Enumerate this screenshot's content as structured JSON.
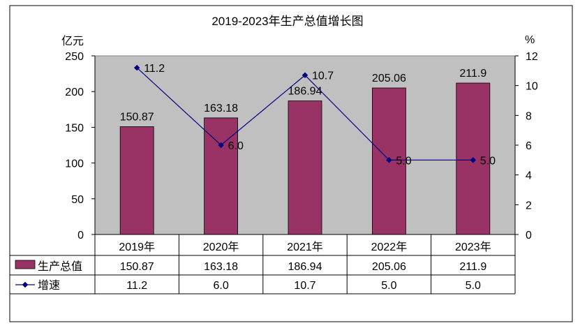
{
  "chart_data": {
    "type": "bar+line",
    "title": "2019-2023年生产总值增长图",
    "categories": [
      "2019年",
      "2020年",
      "2021年",
      "2022年",
      "2023年"
    ],
    "y_left": {
      "unit": "亿元",
      "ylim": [
        0,
        250
      ],
      "ticks": [
        0,
        50,
        100,
        150,
        200,
        250
      ]
    },
    "y_right": {
      "unit": "%",
      "ylim": [
        0,
        12
      ],
      "ticks": [
        0,
        2,
        4,
        6,
        8,
        10,
        12
      ]
    },
    "series": [
      {
        "name": "生产总值",
        "kind": "bar",
        "axis": "left",
        "color": "#993366",
        "values": [
          150.87,
          163.18,
          186.94,
          205.06,
          211.9
        ],
        "labels": [
          "150.87",
          "163.18",
          "186.94",
          "205.06",
          "211.9"
        ]
      },
      {
        "name": "增速",
        "kind": "line",
        "axis": "right",
        "color": "#000080",
        "values": [
          11.2,
          6.0,
          10.7,
          5.0,
          5.0
        ],
        "labels": [
          "11.2",
          "6.0",
          "10.7",
          "5.0",
          "5.0"
        ]
      }
    ],
    "plot_background": "#c0c0c0",
    "grid": false,
    "legend": "data-table-below"
  }
}
